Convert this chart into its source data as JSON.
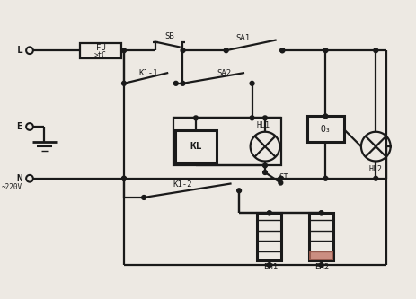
{
  "bg_color": "#ede9e3",
  "line_color": "#1a1a1a",
  "lw": 1.6,
  "lw_thick": 2.2,
  "fs": 7.0,
  "labels": {
    "L": "L",
    "E": "E",
    "N": "N",
    "voltage": "~220V",
    "FU": "FU",
    "fuse_sub": ">tC",
    "SB": "SB",
    "SA1": "SA1",
    "SA2": "SA2",
    "K1_1": "K1-1",
    "KL": "KL",
    "HL1": "HL1",
    "O3": "O₃",
    "HL2": "HL2",
    "ST": "ST",
    "K1_2": "K1-2",
    "EH1": "EH1",
    "EH2": "EH2"
  }
}
